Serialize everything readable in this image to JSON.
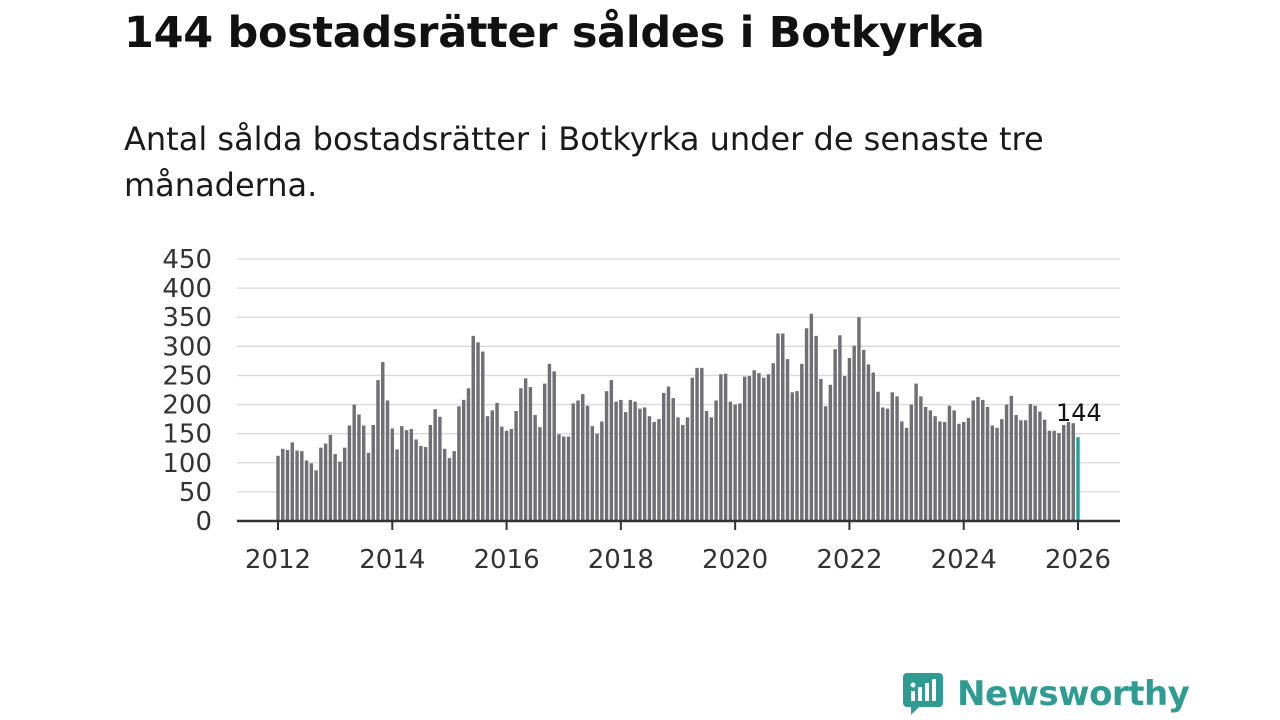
{
  "header": {
    "title": "144 bostadsrätter såldes i Botkyrka",
    "subtitle": "Antal sålda bostadsrätter i Botkyrka under de senaste tre månaderna."
  },
  "logo": {
    "text": "Newsworthy",
    "color": "#2e9c93"
  },
  "colors": {
    "bar": "#6f6f74",
    "highlight": "#1aa39a",
    "grid": "#d9d9d9",
    "axis": "#333333"
  },
  "chart_data": {
    "type": "bar",
    "title": "144 bostadsrätter såldes i Botkyrka",
    "xlabel": "",
    "ylabel": "",
    "ylim": [
      0,
      450
    ],
    "yticks": [
      "0",
      "50",
      "100",
      "150",
      "200",
      "250",
      "300",
      "350",
      "400",
      "450"
    ],
    "xticks": [
      "2012",
      "2014",
      "2016",
      "2018",
      "2020",
      "2022",
      "2024",
      "2026"
    ],
    "xrange": [
      2012,
      2026
    ],
    "start": "2012-01",
    "highlight_label": "144",
    "values": [
      112,
      124,
      122,
      135,
      121,
      120,
      104,
      99,
      87,
      126,
      133,
      148,
      115,
      102,
      126,
      164,
      200,
      183,
      164,
      117,
      165,
      242,
      273,
      207,
      159,
      123,
      163,
      156,
      158,
      140,
      129,
      127,
      165,
      192,
      179,
      124,
      108,
      120,
      197,
      208,
      228,
      318,
      307,
      291,
      180,
      190,
      203,
      162,
      155,
      158,
      189,
      228,
      245,
      230,
      182,
      161,
      236,
      270,
      257,
      149,
      145,
      145,
      202,
      207,
      218,
      198,
      163,
      150,
      171,
      223,
      242,
      205,
      208,
      187,
      208,
      205,
      193,
      195,
      180,
      170,
      175,
      220,
      231,
      211,
      178,
      165,
      178,
      246,
      263,
      263,
      189,
      178,
      207,
      252,
      253,
      205,
      200,
      202,
      248,
      249,
      259,
      254,
      246,
      252,
      271,
      322,
      322,
      278,
      221,
      223,
      270,
      331,
      356,
      318,
      244,
      197,
      234,
      295,
      319,
      249,
      280,
      301,
      350,
      294,
      269,
      255,
      222,
      195,
      193,
      221,
      214,
      171,
      160,
      200,
      236,
      214,
      196,
      190,
      180,
      171,
      170,
      198,
      190,
      167,
      170,
      177,
      207,
      213,
      208,
      196,
      164,
      160,
      175,
      200,
      215,
      182,
      173,
      173,
      201,
      198,
      188,
      174,
      155,
      155,
      151,
      165,
      170,
      168,
      144
    ]
  }
}
